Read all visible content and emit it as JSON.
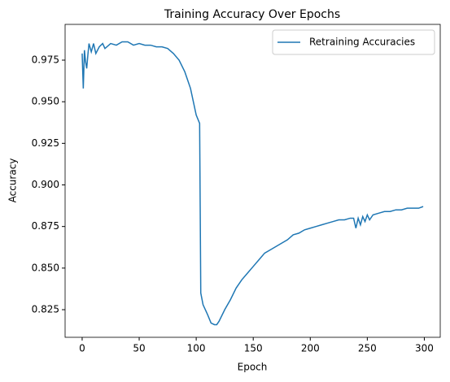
{
  "chart_data": {
    "type": "line",
    "title": "Training Accuracy Over Epochs",
    "x_label": "Epoch",
    "y_label": "Accuracy",
    "x": [
      0,
      1,
      2,
      3,
      4,
      5,
      6,
      8,
      10,
      12,
      15,
      18,
      20,
      25,
      30,
      35,
      40,
      45,
      50,
      55,
      60,
      65,
      70,
      75,
      80,
      85,
      90,
      95,
      100,
      103,
      104,
      106,
      110,
      113,
      116,
      118,
      120,
      125,
      130,
      135,
      140,
      145,
      150,
      155,
      160,
      165,
      170,
      175,
      180,
      185,
      190,
      195,
      200,
      205,
      210,
      215,
      220,
      225,
      230,
      235,
      238,
      240,
      242,
      244,
      246,
      248,
      250,
      252,
      255,
      260,
      265,
      270,
      275,
      280,
      285,
      290,
      295,
      299
    ],
    "series": [
      {
        "name": "Retraining Accuracies",
        "color": "#1f77b4",
        "values": [
          0.979,
          0.958,
          0.981,
          0.974,
          0.97,
          0.978,
          0.985,
          0.98,
          0.985,
          0.979,
          0.983,
          0.985,
          0.982,
          0.985,
          0.984,
          0.986,
          0.986,
          0.984,
          0.985,
          0.984,
          0.984,
          0.983,
          0.983,
          0.982,
          0.979,
          0.975,
          0.968,
          0.958,
          0.942,
          0.937,
          0.835,
          0.828,
          0.822,
          0.817,
          0.816,
          0.816,
          0.818,
          0.825,
          0.831,
          0.838,
          0.843,
          0.847,
          0.851,
          0.855,
          0.859,
          0.861,
          0.863,
          0.865,
          0.867,
          0.87,
          0.871,
          0.873,
          0.874,
          0.875,
          0.876,
          0.877,
          0.878,
          0.879,
          0.879,
          0.88,
          0.88,
          0.874,
          0.88,
          0.876,
          0.881,
          0.878,
          0.882,
          0.879,
          0.882,
          0.883,
          0.884,
          0.884,
          0.885,
          0.885,
          0.886,
          0.886,
          0.886,
          0.887
        ]
      }
    ],
    "xlim": [
      -14.95,
      313.95
    ],
    "ylim": [
      0.8084,
      0.9965
    ],
    "xticks": [
      0,
      50,
      100,
      150,
      200,
      250,
      300
    ],
    "yticks": [
      0.825,
      {
        "value": 0.85,
        "label": "0.850"
      },
      0.875,
      {
        "value": 0.9,
        "label": "0.900"
      },
      0.925,
      {
        "value": 0.95,
        "label": "0.950"
      },
      0.975
    ],
    "legend": "upper right"
  }
}
